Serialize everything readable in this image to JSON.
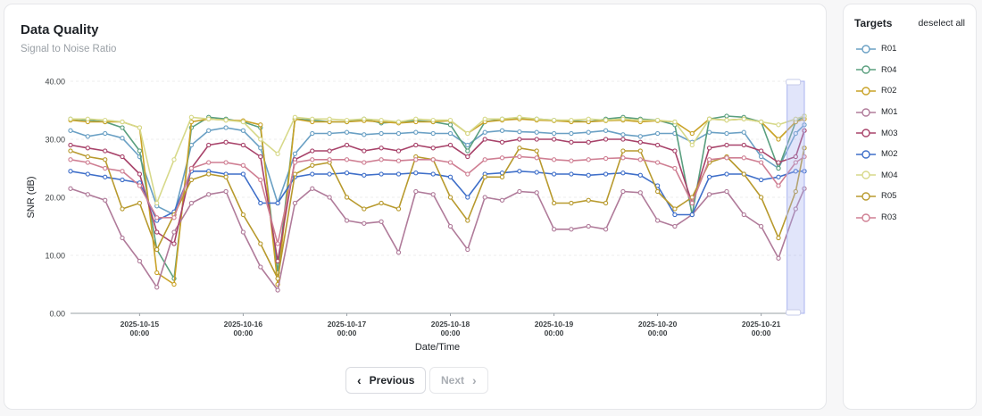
{
  "panel": {
    "title": "Data Quality",
    "subtitle": "Signal to Noise Ratio"
  },
  "sidebar": {
    "title": "Targets",
    "deselect_label": "deselect all"
  },
  "pager": {
    "prev_label": "Previous",
    "next_label": "Next",
    "prev_icon": "chevron-left-icon",
    "next_icon": "chevron-right-icon"
  },
  "colors": {
    "selection": "#aab4f0"
  },
  "chart_data": {
    "type": "line",
    "title": "",
    "xlabel": "Date/Time",
    "ylabel": "SNR (dB)",
    "ylim": [
      0,
      40
    ],
    "yticks": [
      "0.00",
      "10.00",
      "20.00",
      "30.00",
      "40.00"
    ],
    "xlim": [
      "2025-10-14 08:00",
      "2025-10-21 10:00"
    ],
    "xticks": [
      {
        "date": "2025-10-15",
        "time": "00:00"
      },
      {
        "date": "2025-10-16",
        "time": "00:00"
      },
      {
        "date": "2025-10-17",
        "time": "00:00"
      },
      {
        "date": "2025-10-18",
        "time": "00:00"
      },
      {
        "date": "2025-10-19",
        "time": "00:00"
      },
      {
        "date": "2025-10-20",
        "time": "00:00"
      },
      {
        "date": "2025-10-21",
        "time": "00:00"
      }
    ],
    "grid": true,
    "legend": "right",
    "selection": [
      "2025-10-21 06:00",
      "2025-10-21 10:00"
    ],
    "x": [
      "2025-10-14 08:00",
      "2025-10-14 12:00",
      "2025-10-14 16:00",
      "2025-10-14 20:00",
      "2025-10-15 00:00",
      "2025-10-15 04:00",
      "2025-10-15 08:00",
      "2025-10-15 12:00",
      "2025-10-15 16:00",
      "2025-10-15 20:00",
      "2025-10-16 00:00",
      "2025-10-16 04:00",
      "2025-10-16 08:00",
      "2025-10-16 12:00",
      "2025-10-16 16:00",
      "2025-10-16 20:00",
      "2025-10-17 00:00",
      "2025-10-17 04:00",
      "2025-10-17 08:00",
      "2025-10-17 12:00",
      "2025-10-17 16:00",
      "2025-10-17 20:00",
      "2025-10-18 00:00",
      "2025-10-18 04:00",
      "2025-10-18 08:00",
      "2025-10-18 12:00",
      "2025-10-18 16:00",
      "2025-10-18 20:00",
      "2025-10-19 00:00",
      "2025-10-19 04:00",
      "2025-10-19 08:00",
      "2025-10-19 12:00",
      "2025-10-19 16:00",
      "2025-10-19 20:00",
      "2025-10-20 00:00",
      "2025-10-20 04:00",
      "2025-10-20 08:00",
      "2025-10-20 12:00",
      "2025-10-20 16:00",
      "2025-10-20 20:00",
      "2025-10-21 00:00",
      "2025-10-21 04:00",
      "2025-10-21 08:00",
      "2025-10-21 10:00"
    ],
    "series": [
      {
        "name": "R01",
        "color": "#6aa0c4",
        "values": [
          31.5,
          30.5,
          31.0,
          30.2,
          27.0,
          18.5,
          17.0,
          29.0,
          31.5,
          32.0,
          31.5,
          28.5,
          19.0,
          27.5,
          31.0,
          31.0,
          31.2,
          30.8,
          31.0,
          31.0,
          31.2,
          31.0,
          31.0,
          29.0,
          31.2,
          31.5,
          31.3,
          31.2,
          31.0,
          31.0,
          31.2,
          31.5,
          30.8,
          30.5,
          31.0,
          31.0,
          29.5,
          31.2,
          31.0,
          31.2,
          27.0,
          25.0,
          31.0,
          32.5
        ]
      },
      {
        "name": "R04",
        "color": "#5a9f7f",
        "values": [
          33.5,
          33.3,
          33.0,
          32.0,
          28.0,
          11.0,
          6.0,
          32.0,
          33.8,
          33.5,
          33.0,
          32.0,
          7.0,
          33.5,
          33.3,
          33.0,
          33.0,
          33.5,
          32.8,
          33.0,
          33.2,
          33.0,
          32.5,
          28.0,
          33.0,
          33.5,
          33.7,
          33.5,
          33.3,
          33.2,
          33.0,
          33.5,
          33.8,
          33.5,
          33.3,
          32.5,
          17.0,
          33.5,
          34.0,
          33.8,
          33.0,
          25.0,
          33.0,
          34.0
        ]
      },
      {
        "name": "R02",
        "color": "#c9a227",
        "values": [
          33.3,
          33.0,
          33.0,
          33.0,
          32.0,
          7.0,
          5.0,
          33.0,
          33.5,
          33.3,
          33.2,
          32.5,
          5.0,
          33.5,
          33.0,
          33.0,
          33.0,
          33.2,
          33.0,
          32.8,
          33.0,
          33.0,
          33.2,
          31.0,
          33.0,
          33.3,
          33.5,
          33.3,
          33.2,
          33.0,
          33.0,
          33.2,
          33.3,
          33.0,
          33.2,
          33.0,
          31.0,
          33.5,
          33.3,
          33.5,
          33.0,
          30.0,
          33.0,
          33.5
        ]
      },
      {
        "name": "M01",
        "color": "#b07b9a",
        "values": [
          21.5,
          20.5,
          19.5,
          13.0,
          9.0,
          4.5,
          14.0,
          19.0,
          20.5,
          21.0,
          14.0,
          8.0,
          4.0,
          19.0,
          21.5,
          20.0,
          16.0,
          15.5,
          15.8,
          10.5,
          21.0,
          20.5,
          15.0,
          11.0,
          20.0,
          19.5,
          21.0,
          20.8,
          14.5,
          14.5,
          15.0,
          14.5,
          21.0,
          20.8,
          16.0,
          15.0,
          17.0,
          20.5,
          21.0,
          17.0,
          15.0,
          9.5,
          18.0,
          21.5
        ]
      },
      {
        "name": "M03",
        "color": "#a8436a",
        "values": [
          29.0,
          28.5,
          28.0,
          27.0,
          24.0,
          14.0,
          12.0,
          25.0,
          29.0,
          29.5,
          29.0,
          27.0,
          9.0,
          26.5,
          28.0,
          28.0,
          29.0,
          28.0,
          28.5,
          28.0,
          29.0,
          28.5,
          29.0,
          27.0,
          30.0,
          29.5,
          30.0,
          30.0,
          30.0,
          29.5,
          29.5,
          30.0,
          30.0,
          29.5,
          29.0,
          28.0,
          19.0,
          28.5,
          29.0,
          29.0,
          28.0,
          26.0,
          27.0,
          31.5
        ]
      },
      {
        "name": "M02",
        "color": "#3f6fc9",
        "values": [
          24.5,
          24.0,
          23.5,
          23.0,
          22.5,
          16.0,
          17.5,
          24.5,
          24.5,
          24.0,
          24.0,
          19.0,
          19.0,
          23.5,
          24.0,
          24.0,
          24.2,
          23.8,
          24.0,
          24.0,
          24.2,
          24.0,
          23.5,
          20.0,
          24.0,
          24.2,
          24.5,
          24.3,
          24.0,
          24.0,
          23.8,
          24.0,
          24.2,
          23.8,
          22.0,
          17.0,
          17.0,
          23.5,
          24.0,
          24.0,
          23.0,
          23.5,
          24.5,
          24.5
        ]
      },
      {
        "name": "M04",
        "color": "#d7d98a",
        "values": [
          33.5,
          33.5,
          33.3,
          33.0,
          32.0,
          19.0,
          26.5,
          33.8,
          33.5,
          33.3,
          33.0,
          30.0,
          27.5,
          33.8,
          33.5,
          33.5,
          33.3,
          33.5,
          33.3,
          33.0,
          33.5,
          33.3,
          33.3,
          31.0,
          33.5,
          33.5,
          33.8,
          33.5,
          33.3,
          33.3,
          33.5,
          33.3,
          33.5,
          33.3,
          33.3,
          33.0,
          29.0,
          33.5,
          33.3,
          33.5,
          33.0,
          32.5,
          33.5,
          34.0
        ]
      },
      {
        "name": "R05",
        "color": "#b89a2e",
        "values": [
          28.0,
          27.0,
          26.5,
          18.0,
          19.0,
          11.0,
          17.0,
          23.0,
          24.0,
          23.5,
          17.0,
          12.0,
          6.0,
          24.0,
          25.5,
          26.0,
          20.0,
          18.0,
          19.0,
          18.0,
          27.0,
          26.5,
          20.0,
          16.0,
          23.5,
          23.5,
          28.5,
          28.0,
          19.0,
          19.0,
          19.5,
          19.0,
          28.0,
          28.0,
          21.0,
          18.0,
          20.0,
          26.0,
          27.0,
          24.0,
          20.0,
          13.0,
          21.0,
          28.5
        ]
      },
      {
        "name": "R03",
        "color": "#cf7f93",
        "values": [
          26.5,
          26.0,
          25.0,
          24.5,
          22.0,
          16.5,
          16.5,
          25.0,
          26.0,
          26.0,
          25.5,
          23.0,
          12.0,
          26.0,
          26.5,
          26.5,
          26.5,
          26.0,
          26.5,
          26.3,
          26.5,
          26.5,
          26.0,
          24.0,
          26.5,
          26.8,
          27.0,
          26.8,
          26.5,
          26.3,
          26.5,
          26.7,
          26.8,
          26.5,
          26.0,
          25.0,
          19.0,
          26.5,
          26.8,
          26.8,
          26.0,
          22.0,
          26.0,
          27.0
        ]
      }
    ]
  }
}
